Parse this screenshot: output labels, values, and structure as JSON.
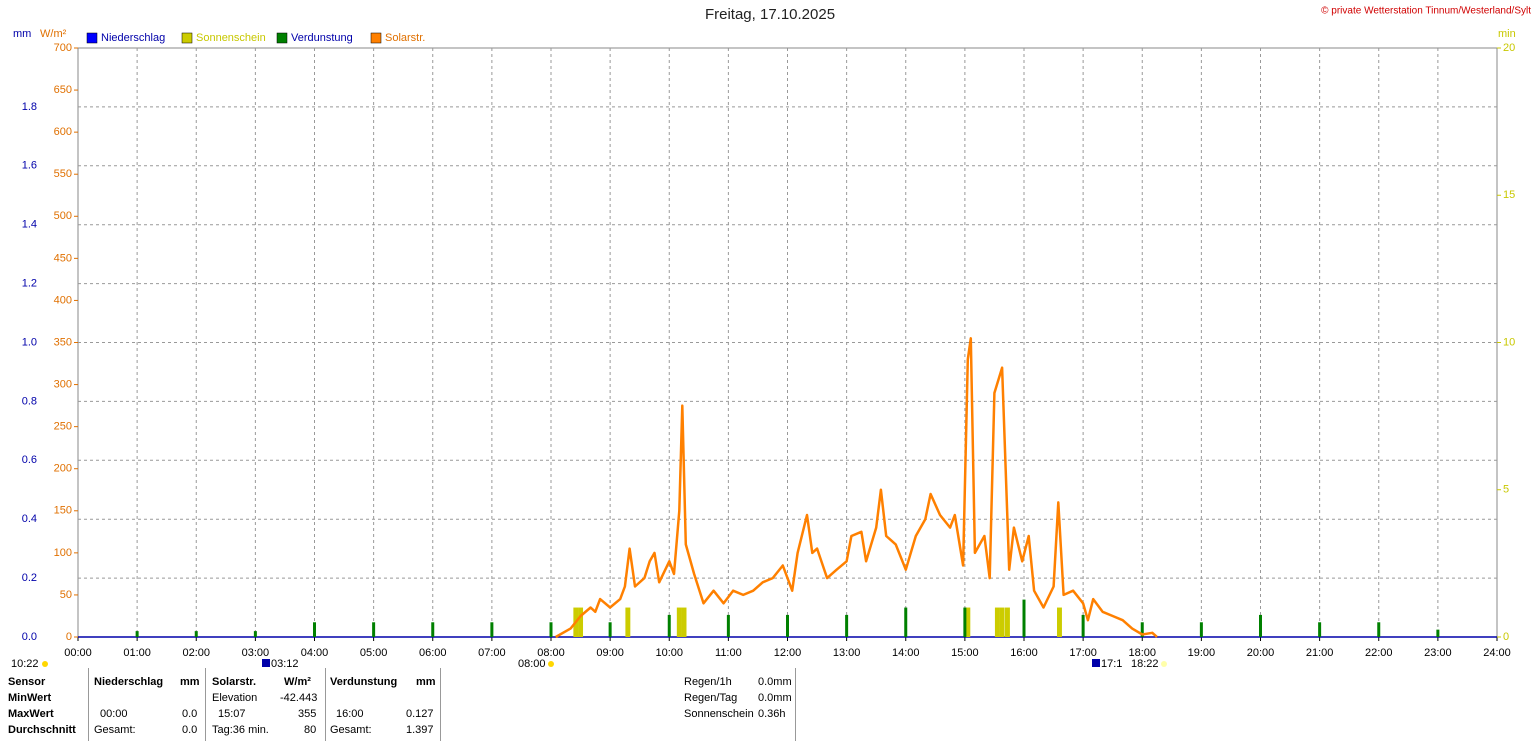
{
  "chart_data": {
    "type": "weather",
    "title": "Freitag, 17.10.2025",
    "copyright": "© private Wetterstation Tinnum/Westerland/Sylt",
    "units": {
      "y": "mm",
      "y3": "W/m²",
      "y2": "min"
    },
    "xlim": [
      0,
      24
    ],
    "xticks": [
      {
        "value": 0,
        "label": "00:00"
      },
      {
        "value": 1,
        "label": "01:00"
      },
      {
        "value": 2,
        "label": "02:00"
      },
      {
        "value": 3,
        "label": "03:00"
      },
      {
        "value": 4,
        "label": "04:00"
      },
      {
        "value": 5,
        "label": "05:00"
      },
      {
        "value": 6,
        "label": "06:00"
      },
      {
        "value": 7,
        "label": "07:00"
      },
      {
        "value": 8,
        "label": "08:00"
      },
      {
        "value": 9,
        "label": "09:00"
      },
      {
        "value": 10,
        "label": "10:00"
      },
      {
        "value": 11,
        "label": "11:00"
      },
      {
        "value": 12,
        "label": "12:00"
      },
      {
        "value": 13,
        "label": "13:00"
      },
      {
        "value": 14,
        "label": "14:00"
      },
      {
        "value": 15,
        "label": "15:00"
      },
      {
        "value": 16,
        "label": "16:00"
      },
      {
        "value": 17,
        "label": "17:00"
      },
      {
        "value": 18,
        "label": "18:00"
      },
      {
        "value": 19,
        "label": "19:00"
      },
      {
        "value": 20,
        "label": "20:00"
      },
      {
        "value": 21,
        "label": "21:00"
      },
      {
        "value": 22,
        "label": "22:00"
      },
      {
        "value": 23,
        "label": "23:00"
      },
      {
        "value": 24,
        "label": "24:00"
      }
    ],
    "ylim": [
      0,
      2
    ],
    "yticks": [
      {
        "value": 0,
        "label": "0.0"
      },
      {
        "value": 0.2,
        "label": "0.2"
      },
      {
        "value": 0.4,
        "label": "0.4"
      },
      {
        "value": 0.6,
        "label": "0.6"
      },
      {
        "value": 0.8,
        "label": "0.8"
      },
      {
        "value": 1,
        "label": "1.0"
      },
      {
        "value": 1.2,
        "label": "1.2"
      },
      {
        "value": 1.4,
        "label": "1.4"
      },
      {
        "value": 1.6,
        "label": "1.6"
      },
      {
        "value": 1.8,
        "label": "1.8"
      }
    ],
    "y3lim": [
      0,
      700
    ],
    "y3ticks": [
      0,
      50,
      100,
      150,
      200,
      250,
      300,
      350,
      400,
      450,
      500,
      550,
      600,
      650,
      700
    ],
    "y2lim": [
      0,
      20
    ],
    "y2ticks": [
      0,
      5,
      10,
      15,
      20
    ],
    "grid": true,
    "legend": [
      {
        "name": "Niederschlag",
        "color": "#0000ff"
      },
      {
        "name": "Sonnenschein",
        "color": "#cccc00"
      },
      {
        "name": "Verdunstung",
        "color": "#008000"
      },
      {
        "name": "Solarstr.",
        "color": "#ff8000"
      }
    ],
    "series": [
      {
        "name": "Sonnenschein",
        "color": "#cccc00",
        "axis": "y2",
        "x": [
          8.42,
          8.5,
          9.3,
          10.17,
          10.25,
          15.05,
          15.55,
          15.63,
          15.72,
          16.6
        ],
        "values": [
          1,
          1,
          1,
          1,
          1,
          1,
          1,
          1,
          1,
          1
        ]
      },
      {
        "name": "Verdunstung",
        "color": "#008000",
        "axis": "y",
        "x": [
          1,
          2,
          3,
          4,
          5,
          6,
          7,
          8,
          9,
          10,
          11,
          12,
          13,
          14,
          15,
          16,
          17,
          18,
          19,
          20,
          21,
          22,
          23
        ],
        "values": [
          0.02,
          0.02,
          0.02,
          0.05,
          0.05,
          0.05,
          0.05,
          0.05,
          0.05,
          0.075,
          0.075,
          0.075,
          0.075,
          0.1,
          0.1,
          0.127,
          0.075,
          0.05,
          0.05,
          0.075,
          0.05,
          0.05,
          0.025
        ]
      },
      {
        "name": "Solarstr.",
        "color": "#ff8000",
        "axis": "y3",
        "x": [
          8.08,
          8.33,
          8.5,
          8.67,
          8.75,
          8.83,
          9,
          9.17,
          9.25,
          9.33,
          9.42,
          9.58,
          9.67,
          9.75,
          9.83,
          10,
          10.08,
          10.17,
          10.22,
          10.28,
          10.42,
          10.58,
          10.75,
          10.92,
          11.08,
          11.25,
          11.42,
          11.58,
          11.75,
          11.92,
          12.08,
          12.17,
          12.33,
          12.42,
          12.5,
          12.67,
          12.83,
          13,
          13.08,
          13.25,
          13.33,
          13.5,
          13.58,
          13.67,
          13.83,
          14,
          14.17,
          14.33,
          14.42,
          14.58,
          14.75,
          14.83,
          14.97,
          15.05,
          15.1,
          15.17,
          15.33,
          15.42,
          15.5,
          15.63,
          15.75,
          15.83,
          15.97,
          16.08,
          16.17,
          16.33,
          16.5,
          16.58,
          16.67,
          16.83,
          17,
          17.08,
          17.17,
          17.33,
          17.5,
          17.67,
          17.83,
          18,
          18.17,
          18.25
        ],
        "values": [
          0,
          10,
          25,
          35,
          30,
          45,
          35,
          45,
          60,
          105,
          60,
          70,
          90,
          100,
          65,
          90,
          75,
          150,
          275,
          110,
          75,
          40,
          55,
          40,
          55,
          50,
          55,
          65,
          70,
          85,
          55,
          100,
          145,
          100,
          105,
          70,
          80,
          90,
          120,
          125,
          90,
          130,
          175,
          120,
          110,
          80,
          120,
          140,
          170,
          145,
          130,
          145,
          85,
          330,
          355,
          100,
          120,
          70,
          290,
          320,
          80,
          130,
          90,
          120,
          55,
          35,
          60,
          160,
          50,
          55,
          40,
          20,
          45,
          30,
          25,
          20,
          10,
          3,
          5,
          0
        ]
      }
    ],
    "annotations": [
      "10:22",
      "03:12",
      "08:00",
      "17:1",
      "18:22"
    ]
  },
  "stats": {
    "labels": [
      "Sensor",
      "MinWert",
      "MaxWert",
      "Durchschnitt"
    ],
    "niederschlag": {
      "header": [
        "Niederschlag",
        "mm"
      ],
      "max": [
        "00:00",
        "0.0"
      ],
      "avg": [
        "Gesamt:",
        "0.0"
      ]
    },
    "solar": {
      "header": [
        "Solarstr.",
        "W/m²"
      ],
      "min": [
        "Elevation",
        "-42.443"
      ],
      "max": [
        "15:07",
        "355"
      ],
      "avg": [
        "Tag:36 min.",
        "80"
      ]
    },
    "verdunstung": {
      "header": [
        "Verdunstung",
        "mm"
      ],
      "max": [
        "16:00",
        "0.127"
      ],
      "avg": [
        "Gesamt:",
        "1.397"
      ]
    },
    "summary": [
      [
        "Regen/1h",
        "0.0mm"
      ],
      [
        "Regen/Tag",
        "0.0mm"
      ],
      [
        "Sonnenschein",
        "0.36h"
      ]
    ]
  }
}
